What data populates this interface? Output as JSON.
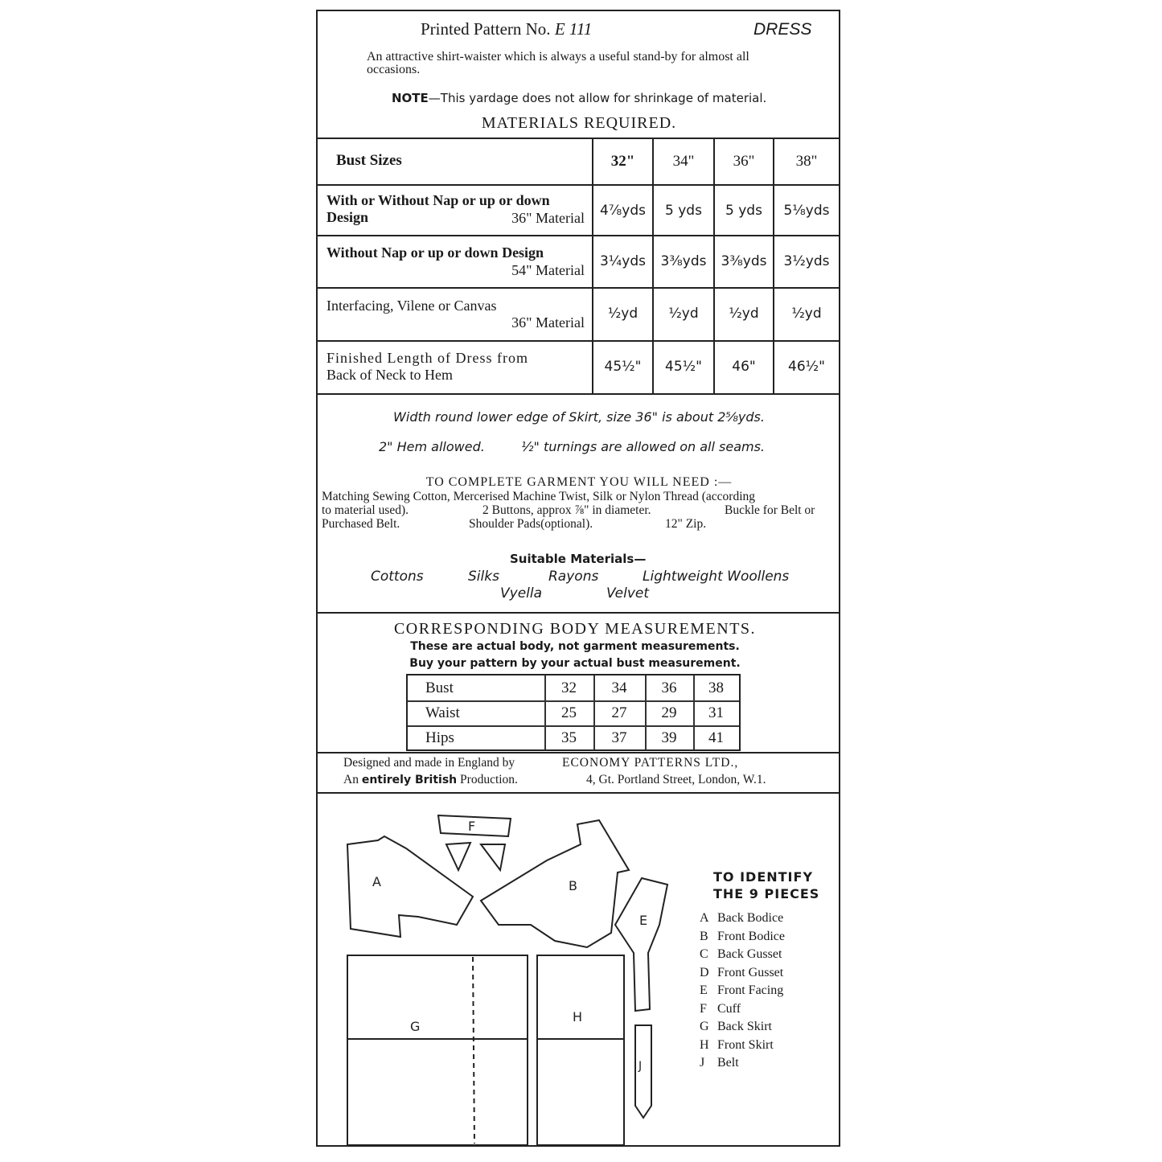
{
  "header": {
    "pattern_label": "Printed Pattern No.",
    "pattern_number": "E 111",
    "garment": "DRESS",
    "description": "An attractive shirt-waister which is always a useful stand-by for almost all occasions.",
    "note_label": "NOTE",
    "note_text": "—This yardage does not allow for shrinkage of material.",
    "materials_title": "MATERIALS REQUIRED."
  },
  "materials_table": {
    "header_label": "Bust Sizes",
    "sizes": [
      "32\"",
      "34\"",
      "36\"",
      "38\""
    ],
    "rows": [
      {
        "label": "With or Without Nap or up or down Design",
        "sub": "36\" Material",
        "values": [
          "4⅞yds",
          "5 yds",
          "5 yds",
          "5⅛yds"
        ]
      },
      {
        "label": "Without Nap or up or down Design",
        "sub": "54\" Material",
        "values": [
          "3¼yds",
          "3⅜yds",
          "3⅜yds",
          "3½yds"
        ]
      },
      {
        "label": "Interfacing, Vilene or Canvas",
        "sub": "36\" Material",
        "values": [
          "½yd",
          "½yd",
          "½yd",
          "½yd"
        ]
      },
      {
        "label": "Finished Length of Dress from",
        "sub": "Back of Neck to Hem",
        "values": [
          "45½\"",
          "45½\"",
          "46\"",
          "46½\""
        ]
      }
    ]
  },
  "notes": {
    "skirt_width": "Width round lower edge of Skirt, size 36\" is about 2⅝yds.",
    "hem": "2\" Hem allowed.",
    "turnings": "½\" turnings are allowed on all seams.",
    "complete_title": "TO COMPLETE GARMENT YOU WILL NEED :—",
    "complete_line1": "Matching Sewing Cotton, Mercerised Machine Twist, Silk or Nylon Thread (according",
    "complete_line2a": "to material used).",
    "complete_line2b": "2 Buttons, approx ⅞\" in diameter.",
    "complete_line2c": "Buckle for Belt or",
    "complete_line3a": "Purchased Belt.",
    "complete_line3b": "Shoulder Pads(optional).",
    "complete_line3c": "12\" Zip.",
    "suitable_title": "Suitable Materials—",
    "materials": [
      "Cottons",
      "Silks",
      "Rayons",
      "Lightweight Woollens",
      "Vyella",
      "Velvet"
    ]
  },
  "body_measurements": {
    "title": "CORRESPONDING BODY MEASUREMENTS.",
    "sub1": "These are actual body, not garment measurements.",
    "sub2": "Buy your pattern by your actual bust measurement.",
    "rows": [
      {
        "label": "Bust",
        "values": [
          "32",
          "34",
          "36",
          "38"
        ]
      },
      {
        "label": "Waist",
        "values": [
          "25",
          "27",
          "29",
          "31"
        ]
      },
      {
        "label": "Hips",
        "values": [
          "35",
          "37",
          "39",
          "41"
        ]
      }
    ]
  },
  "footer": {
    "designed": "Designed and made in England by",
    "company": "ECONOMY PATTERNS LTD.,",
    "production_prefix": "An",
    "production_bold": "entirely British",
    "production_suffix": "Production.",
    "address": "4, Gt. Portland Street, London, W.1."
  },
  "pieces": {
    "title1": "TO IDENTIFY",
    "title2": "THE 9 PIECES",
    "items": [
      {
        "letter": "A",
        "name": "Back Bodice"
      },
      {
        "letter": "B",
        "name": "Front Bodice"
      },
      {
        "letter": "C",
        "name": "Back Gusset"
      },
      {
        "letter": "D",
        "name": "Front Gusset"
      },
      {
        "letter": "E",
        "name": "Front Facing"
      },
      {
        "letter": "F",
        "name": "Cuff"
      },
      {
        "letter": "G",
        "name": "Back Skirt"
      },
      {
        "letter": "H",
        "name": "Front Skirt"
      },
      {
        "letter": "J",
        "name": "Belt"
      }
    ]
  }
}
